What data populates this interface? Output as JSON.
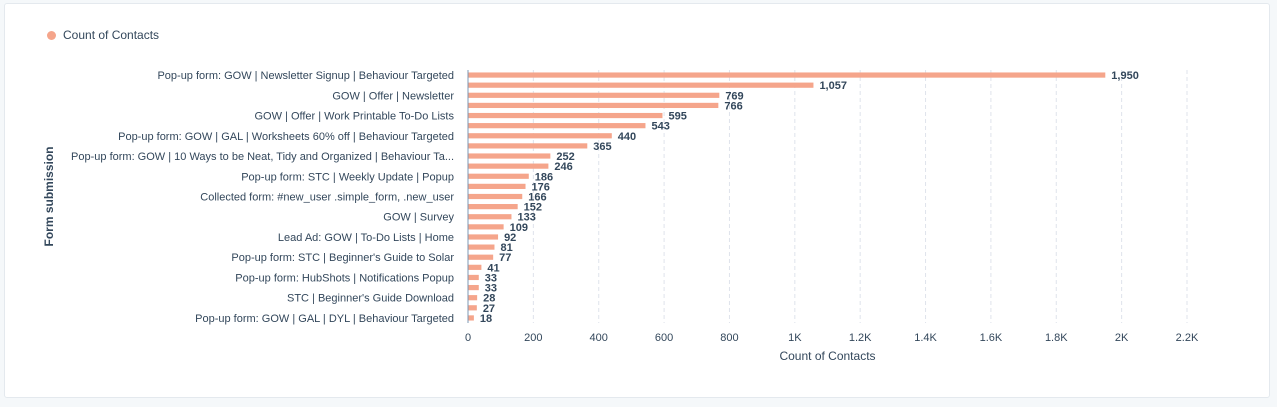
{
  "chart_data": {
    "type": "bar",
    "orientation": "horizontal",
    "legend": [
      "Count of Contacts"
    ],
    "xlabel": "Count of Contacts",
    "ylabel": "Form submission",
    "xlim": [
      0,
      2200
    ],
    "x_ticks": [
      0,
      200,
      400,
      600,
      800,
      1000,
      1200,
      1400,
      1600,
      1800,
      2000,
      2200
    ],
    "x_tick_labels": [
      "0",
      "200",
      "400",
      "600",
      "800",
      "1K",
      "1.2K",
      "1.4K",
      "1.6K",
      "1.8K",
      "2K",
      "2.2K"
    ],
    "category_labels": [
      "Pop-up form: GOW | Newsletter Signup | Behaviour Targeted",
      "",
      "GOW | Offer | Newsletter",
      "",
      "GOW | Offer | Work Printable To-Do Lists",
      "",
      "Pop-up form: GOW | GAL | Worksheets 60% off | Behaviour Targeted",
      "",
      "Pop-up form: GOW | 10 Ways to be Neat, Tidy and Organized | Behaviour Ta...",
      "",
      "Pop-up form: STC | Weekly Update | Popup",
      "",
      "Collected form: #new_user .simple_form, .new_user",
      "",
      "GOW | Survey",
      "",
      "Lead Ad: GOW | To-Do Lists | Home",
      "",
      "Pop-up form: STC | Beginner's Guide to Solar",
      "",
      "Pop-up form: HubShots | Notifications Popup",
      "",
      "STC | Beginner's Guide Download",
      "",
      "Pop-up form: GOW | GAL | DYL | Behaviour Targeted"
    ],
    "values": [
      1950,
      1057,
      769,
      766,
      595,
      543,
      440,
      365,
      252,
      246,
      186,
      176,
      166,
      152,
      133,
      109,
      92,
      81,
      77,
      41,
      33,
      33,
      28,
      27,
      18
    ],
    "value_labels": [
      "1,950",
      "1,057",
      "769",
      "766",
      "595",
      "543",
      "440",
      "365",
      "252",
      "246",
      "186",
      "176",
      "166",
      "152",
      "133",
      "109",
      "92",
      "81",
      "77",
      "41",
      "33",
      "33",
      "28",
      "27",
      "18"
    ],
    "bar_color": "#f5a58b",
    "grid": true
  }
}
